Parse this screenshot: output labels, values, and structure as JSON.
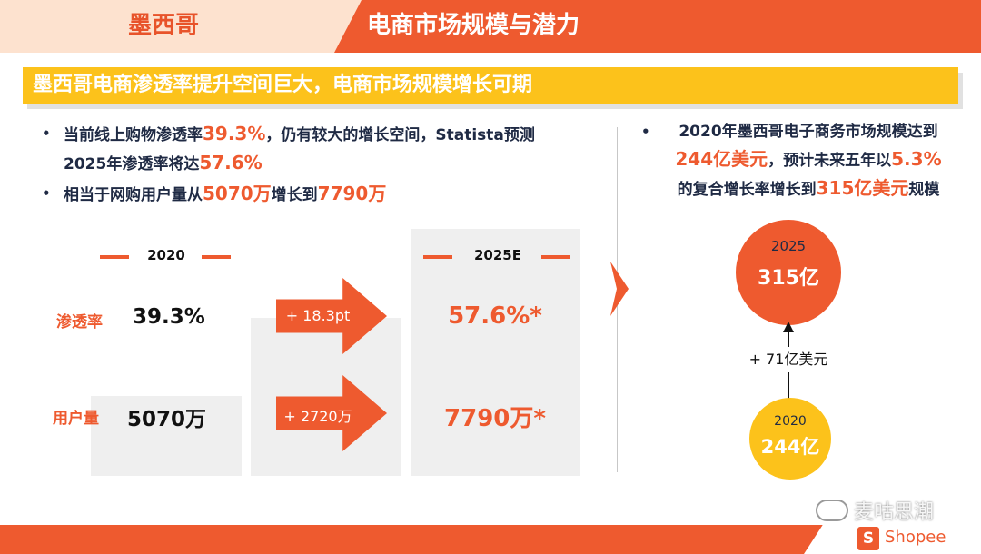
{
  "header": {
    "country": "墨西哥",
    "title": "电商市场规模与潜力"
  },
  "band": {
    "text": "墨西哥电商渗透率提升空间巨大，电商市场规模增长可期"
  },
  "left_bullets": {
    "b1_part1": "当前线上购物渗透率",
    "b1_hl1": "39.3%",
    "b1_part2": "，仍有较大的增长空间，Statista预测",
    "b1_part3": "2025年渗透率将达",
    "b1_hl2": "57.6%",
    "b2_part1": "相当于网购用户量从",
    "b2_hl1": "5070万",
    "b2_part2": "增长到",
    "b2_hl2": "7790万"
  },
  "comparison": {
    "col_2020": "2020",
    "col_2025": "2025E",
    "rows": [
      {
        "label": "渗透率",
        "v2020": "39.3%",
        "delta": "+ 18.3pt",
        "v2025": "57.6%*"
      },
      {
        "label": "用户量",
        "v2020": "5070万",
        "delta": "+ 2720万",
        "v2025": "7790万*"
      }
    ]
  },
  "right_bullet": {
    "p1": "2020年墨西哥电子商务市场规模达到",
    "hl1": "244亿美元",
    "p2": "，预计未来五年以",
    "hl2": "5.3%",
    "p3": "的复合增长率增长到",
    "hl3": "315亿美元",
    "p4": "规模"
  },
  "market": {
    "y2025": "2025",
    "v2025": "315亿",
    "growth": "+ 71亿美元",
    "y2020": "2020",
    "v2020": "244亿"
  },
  "footer": {
    "watermark": "麦咕思潮",
    "brand": "Shopee",
    "brand_icon": "S"
  },
  "colors": {
    "accent": "#ee5a2f",
    "yellow": "#fcc21b",
    "text": "#1f2a44",
    "header_light": "#fde2cf"
  }
}
